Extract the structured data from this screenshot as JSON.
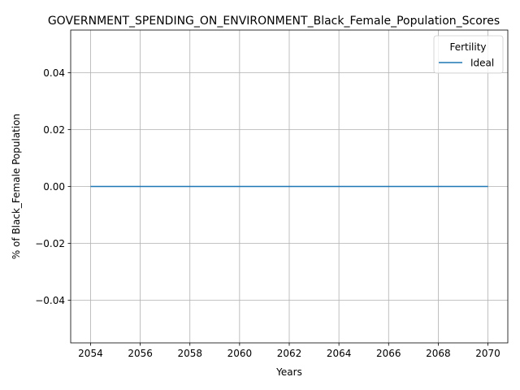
{
  "chart_data": {
    "type": "line",
    "title": "GOVERNMENT_SPENDING_ON_ENVIRONMENT_Black_Female_Population_Scores",
    "xlabel": "Years",
    "ylabel": "% of Black_Female Population",
    "xlim": [
      2053.2,
      2070.8
    ],
    "ylim": [
      -0.055,
      0.055
    ],
    "x_ticks": [
      2054,
      2056,
      2058,
      2060,
      2062,
      2064,
      2066,
      2068,
      2070
    ],
    "x_tick_labels": [
      "2054",
      "2056",
      "2058",
      "2060",
      "2062",
      "2064",
      "2066",
      "2068",
      "2070"
    ],
    "y_ticks": [
      -0.04,
      -0.02,
      0.0,
      0.02,
      0.04
    ],
    "y_tick_labels": [
      "−0.04",
      "−0.02",
      "0.00",
      "0.02",
      "0.04"
    ],
    "grid": true,
    "legend": {
      "title": "Fertility",
      "placement": "top-right"
    },
    "series": [
      {
        "name": "Ideal",
        "color": "#1f77b4",
        "x": [
          2054,
          2055,
          2056,
          2057,
          2058,
          2059,
          2060,
          2061,
          2062,
          2063,
          2064,
          2065,
          2066,
          2067,
          2068,
          2069,
          2070
        ],
        "y": [
          0,
          0,
          0,
          0,
          0,
          0,
          0,
          0,
          0,
          0,
          0,
          0,
          0,
          0,
          0,
          0,
          0
        ]
      }
    ]
  }
}
